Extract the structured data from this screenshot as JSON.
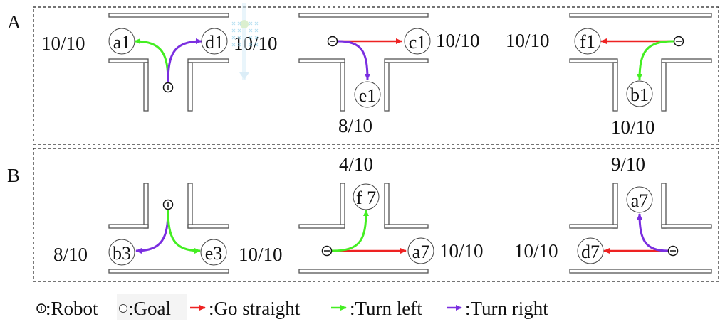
{
  "panels": [
    {
      "id": "A",
      "label": "A"
    },
    {
      "id": "B",
      "label": "B"
    }
  ],
  "colors": {
    "straight": "#ee2222",
    "left": "#44ee22",
    "right": "#7a2ee0",
    "wall": "#555555"
  },
  "scenarios": [
    {
      "panel": "A",
      "goals": [
        {
          "name": "a1",
          "score": "10/10",
          "action": "left"
        },
        {
          "name": "d1",
          "score": "10/10",
          "action": "right"
        }
      ]
    },
    {
      "panel": "A",
      "goals": [
        {
          "name": "c1",
          "score": "10/10",
          "action": "straight"
        },
        {
          "name": "e1",
          "score": "8/10",
          "action": "right"
        }
      ]
    },
    {
      "panel": "A",
      "goals": [
        {
          "name": "f1",
          "score": "10/10",
          "action": "straight"
        },
        {
          "name": "b1",
          "score": "10/10",
          "action": "left"
        }
      ]
    },
    {
      "panel": "B",
      "goals": [
        {
          "name": "b3",
          "score": "8/10",
          "action": "right"
        },
        {
          "name": "e3",
          "score": "10/10",
          "action": "left"
        }
      ]
    },
    {
      "panel": "B",
      "goals": [
        {
          "name": "f 7",
          "score": "4/10",
          "action": "left"
        },
        {
          "name": "a7",
          "score": "10/10",
          "action": "straight"
        }
      ]
    },
    {
      "panel": "B",
      "goals": [
        {
          "name": "a7",
          "score": "9/10",
          "action": "right"
        },
        {
          "name": "d7",
          "score": "10/10",
          "action": "straight"
        }
      ]
    }
  ],
  "legend": {
    "robot": ":Robot",
    "goal": ":Goal",
    "straight": ":Go straight",
    "left": ":Turn left",
    "right": ":Turn right"
  }
}
